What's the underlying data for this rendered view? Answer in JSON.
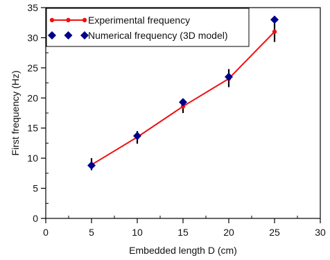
{
  "chart_data": {
    "type": "line",
    "title": "",
    "xlabel": "Embedded length D (cm)",
    "ylabel": "First frequency (Hz)",
    "xlim": [
      0,
      30
    ],
    "ylim": [
      0,
      35
    ],
    "x_ticks": [
      0,
      5,
      10,
      15,
      20,
      25,
      30
    ],
    "y_ticks": [
      0,
      5,
      10,
      15,
      20,
      25,
      30,
      35
    ],
    "x_minor_step": 2.5,
    "y_minor_step": 2.5,
    "grid": false,
    "legend_position": "top-left",
    "series": [
      {
        "name": "Experimental frequency",
        "kind": "line-with-markers",
        "marker": "circle",
        "color": "#ee1111",
        "x": [
          5,
          10,
          15,
          20,
          25
        ],
        "y": [
          8.9,
          13.5,
          18.6,
          23.2,
          31.0
        ],
        "error_low": [
          8.0,
          12.4,
          17.5,
          21.8,
          29.3
        ],
        "error_high": [
          10.0,
          14.5,
          19.8,
          24.8,
          32.7
        ]
      },
      {
        "name": "Numerical frequency (3D model)",
        "kind": "markers",
        "marker": "diamond",
        "color": "#00008b",
        "x": [
          5,
          10,
          15,
          20,
          25
        ],
        "y": [
          8.8,
          13.7,
          19.3,
          23.5,
          33.0
        ]
      }
    ]
  }
}
